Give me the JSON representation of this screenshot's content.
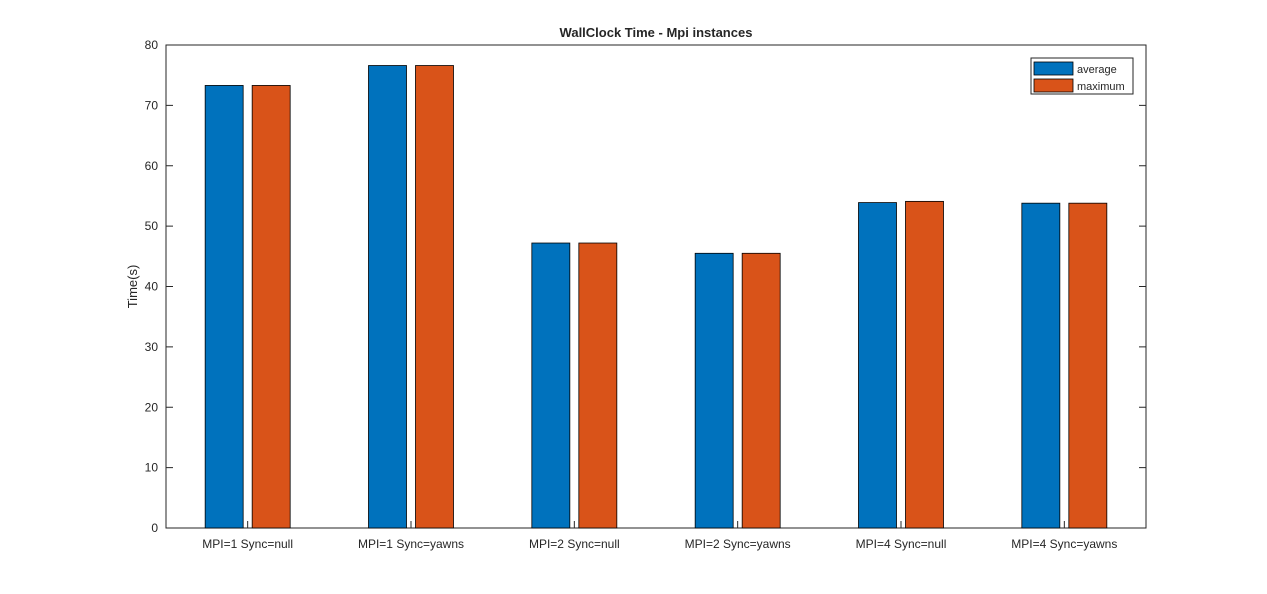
{
  "chart_data": {
    "type": "bar",
    "title": "WallClock Time - Mpi instances",
    "xlabel": "",
    "ylabel": "Time(s)",
    "ylim": [
      0,
      80
    ],
    "yticks": [
      0,
      10,
      20,
      30,
      40,
      50,
      60,
      70,
      80
    ],
    "categories": [
      "MPI=1 Sync=null",
      "MPI=1 Sync=yawns",
      "MPI=2 Sync=null",
      "MPI=2 Sync=yawns",
      "MPI=4 Sync=null",
      "MPI=4 Sync=yawns"
    ],
    "series": [
      {
        "name": "average",
        "color": "#0072BD",
        "values": [
          73.3,
          76.6,
          47.2,
          45.5,
          53.9,
          53.8
        ]
      },
      {
        "name": "maximum",
        "color": "#D95319",
        "values": [
          73.3,
          76.6,
          47.2,
          45.5,
          54.1,
          53.8
        ]
      }
    ],
    "legend": "top-right",
    "grid": false
  }
}
